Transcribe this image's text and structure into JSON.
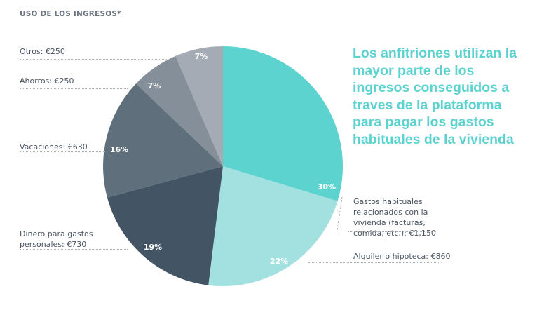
{
  "chart_data": {
    "type": "pie",
    "title": "USO DE LOS INGRESOS*",
    "slices": [
      {
        "label": "Gastos habituales relacionados con la vivienda (facturas, comida, etc.): €1,150",
        "value": 1150,
        "percent_label": "30%",
        "color": "#5dd3d0"
      },
      {
        "label": "Alquiler o hipoteca: €860",
        "value": 860,
        "percent_label": "22%",
        "color": "#a3e1e0"
      },
      {
        "label": "Dinero para gastos personales: €730",
        "value": 730,
        "percent_label": "19%",
        "color": "#435564"
      },
      {
        "label": "Vacaciones: €630",
        "value": 630,
        "percent_label": "16%",
        "color": "#5f6f7c"
      },
      {
        "label": "Ahorros: €250",
        "value": 250,
        "percent_label": "7%",
        "color": "#858f99"
      },
      {
        "label": "Otros: €250",
        "value": 250,
        "percent_label": "7%",
        "color": "#a4abb5"
      }
    ],
    "start": "top",
    "direction": "clockwise"
  },
  "headline": "Los anfitriones utilizan la mayor parte de los ingresos conseguidos a traves de la plataforma para pagar los gastos habituales de la vivienda"
}
